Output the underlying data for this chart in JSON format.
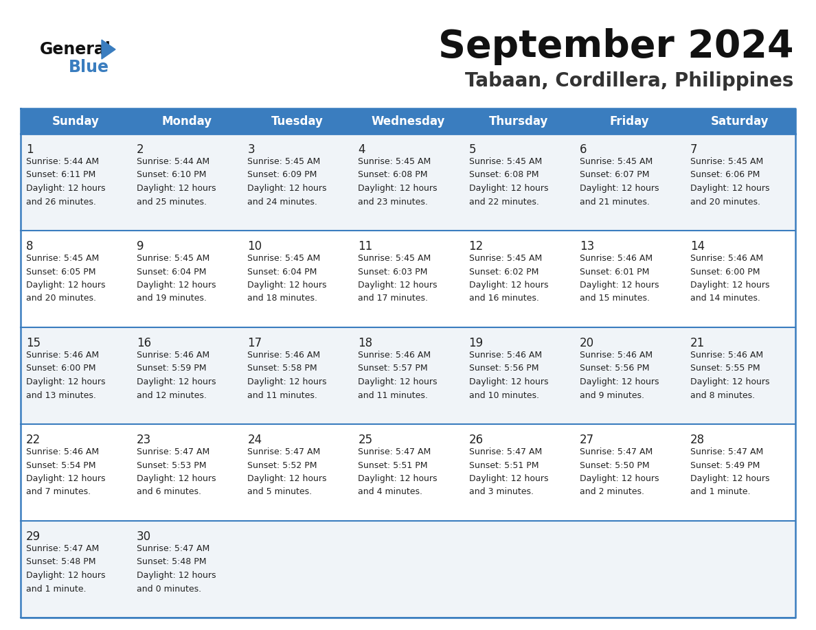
{
  "title": "September 2024",
  "subtitle": "Tabaan, Cordillera, Philippines",
  "header_color": "#3a7dbf",
  "header_text_color": "#ffffff",
  "cell_bg_odd": "#f0f4f8",
  "cell_bg_even": "#ffffff",
  "border_color": "#3a7dbf",
  "text_color": "#222222",
  "days_of_week": [
    "Sunday",
    "Monday",
    "Tuesday",
    "Wednesday",
    "Thursday",
    "Friday",
    "Saturday"
  ],
  "weeks": [
    [
      {
        "day": 1,
        "sunrise": "5:44 AM",
        "sunset": "6:11 PM",
        "daylight_hours": 12,
        "daylight_minutes": 26
      },
      {
        "day": 2,
        "sunrise": "5:44 AM",
        "sunset": "6:10 PM",
        "daylight_hours": 12,
        "daylight_minutes": 25
      },
      {
        "day": 3,
        "sunrise": "5:45 AM",
        "sunset": "6:09 PM",
        "daylight_hours": 12,
        "daylight_minutes": 24
      },
      {
        "day": 4,
        "sunrise": "5:45 AM",
        "sunset": "6:08 PM",
        "daylight_hours": 12,
        "daylight_minutes": 23
      },
      {
        "day": 5,
        "sunrise": "5:45 AM",
        "sunset": "6:08 PM",
        "daylight_hours": 12,
        "daylight_minutes": 22
      },
      {
        "day": 6,
        "sunrise": "5:45 AM",
        "sunset": "6:07 PM",
        "daylight_hours": 12,
        "daylight_minutes": 21
      },
      {
        "day": 7,
        "sunrise": "5:45 AM",
        "sunset": "6:06 PM",
        "daylight_hours": 12,
        "daylight_minutes": 20
      }
    ],
    [
      {
        "day": 8,
        "sunrise": "5:45 AM",
        "sunset": "6:05 PM",
        "daylight_hours": 12,
        "daylight_minutes": 20
      },
      {
        "day": 9,
        "sunrise": "5:45 AM",
        "sunset": "6:04 PM",
        "daylight_hours": 12,
        "daylight_minutes": 19
      },
      {
        "day": 10,
        "sunrise": "5:45 AM",
        "sunset": "6:04 PM",
        "daylight_hours": 12,
        "daylight_minutes": 18
      },
      {
        "day": 11,
        "sunrise": "5:45 AM",
        "sunset": "6:03 PM",
        "daylight_hours": 12,
        "daylight_minutes": 17
      },
      {
        "day": 12,
        "sunrise": "5:45 AM",
        "sunset": "6:02 PM",
        "daylight_hours": 12,
        "daylight_minutes": 16
      },
      {
        "day": 13,
        "sunrise": "5:46 AM",
        "sunset": "6:01 PM",
        "daylight_hours": 12,
        "daylight_minutes": 15
      },
      {
        "day": 14,
        "sunrise": "5:46 AM",
        "sunset": "6:00 PM",
        "daylight_hours": 12,
        "daylight_minutes": 14
      }
    ],
    [
      {
        "day": 15,
        "sunrise": "5:46 AM",
        "sunset": "6:00 PM",
        "daylight_hours": 12,
        "daylight_minutes": 13
      },
      {
        "day": 16,
        "sunrise": "5:46 AM",
        "sunset": "5:59 PM",
        "daylight_hours": 12,
        "daylight_minutes": 12
      },
      {
        "day": 17,
        "sunrise": "5:46 AM",
        "sunset": "5:58 PM",
        "daylight_hours": 12,
        "daylight_minutes": 11
      },
      {
        "day": 18,
        "sunrise": "5:46 AM",
        "sunset": "5:57 PM",
        "daylight_hours": 12,
        "daylight_minutes": 11
      },
      {
        "day": 19,
        "sunrise": "5:46 AM",
        "sunset": "5:56 PM",
        "daylight_hours": 12,
        "daylight_minutes": 10
      },
      {
        "day": 20,
        "sunrise": "5:46 AM",
        "sunset": "5:56 PM",
        "daylight_hours": 12,
        "daylight_minutes": 9
      },
      {
        "day": 21,
        "sunrise": "5:46 AM",
        "sunset": "5:55 PM",
        "daylight_hours": 12,
        "daylight_minutes": 8
      }
    ],
    [
      {
        "day": 22,
        "sunrise": "5:46 AM",
        "sunset": "5:54 PM",
        "daylight_hours": 12,
        "daylight_minutes": 7
      },
      {
        "day": 23,
        "sunrise": "5:47 AM",
        "sunset": "5:53 PM",
        "daylight_hours": 12,
        "daylight_minutes": 6
      },
      {
        "day": 24,
        "sunrise": "5:47 AM",
        "sunset": "5:52 PM",
        "daylight_hours": 12,
        "daylight_minutes": 5
      },
      {
        "day": 25,
        "sunrise": "5:47 AM",
        "sunset": "5:51 PM",
        "daylight_hours": 12,
        "daylight_minutes": 4
      },
      {
        "day": 26,
        "sunrise": "5:47 AM",
        "sunset": "5:51 PM",
        "daylight_hours": 12,
        "daylight_minutes": 3
      },
      {
        "day": 27,
        "sunrise": "5:47 AM",
        "sunset": "5:50 PM",
        "daylight_hours": 12,
        "daylight_minutes": 2
      },
      {
        "day": 28,
        "sunrise": "5:47 AM",
        "sunset": "5:49 PM",
        "daylight_hours": 12,
        "daylight_minutes": 1
      }
    ],
    [
      {
        "day": 29,
        "sunrise": "5:47 AM",
        "sunset": "5:48 PM",
        "daylight_hours": 12,
        "daylight_minutes": 1
      },
      {
        "day": 30,
        "sunrise": "5:47 AM",
        "sunset": "5:48 PM",
        "daylight_hours": 12,
        "daylight_minutes": 0
      },
      null,
      null,
      null,
      null,
      null
    ]
  ]
}
